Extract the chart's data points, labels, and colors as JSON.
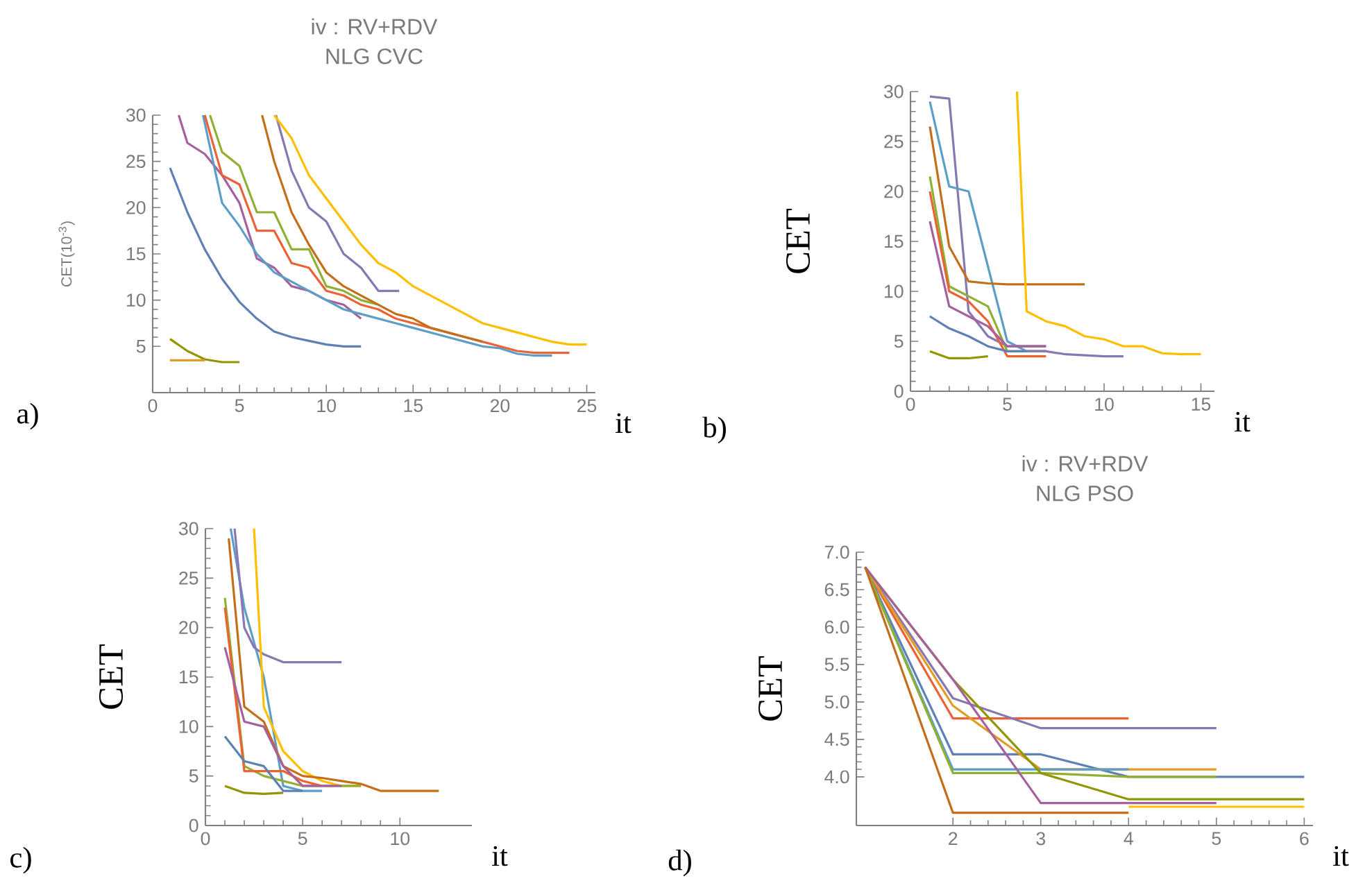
{
  "chart_data": [
    {
      "type": "line",
      "title": "iv : RV+RDV",
      "subtitle": "NLG CVC",
      "xlabel": "it",
      "ylabel": "CET(10$^{-3}$)",
      "annotations": [
        "a)"
      ],
      "xlim": [
        0,
        25.5
      ],
      "ylim": [
        0,
        30
      ],
      "xticks": [
        0,
        5,
        10,
        15,
        20,
        25
      ],
      "yticks": [
        5,
        10,
        15,
        20,
        25,
        30
      ],
      "series": [
        {
          "color": "#5e81b5",
          "x": [
            1,
            2,
            3,
            4,
            5,
            6,
            7,
            8,
            9,
            10,
            11,
            12
          ],
          "values": [
            24.3,
            19.5,
            15.5,
            12.3,
            9.8,
            8,
            6.6,
            6,
            5.6,
            5.2,
            5,
            5
          ]
        },
        {
          "color": "#929600",
          "x": [
            1,
            2,
            3,
            4,
            5
          ],
          "values": [
            5.8,
            4.5,
            3.6,
            3.3,
            3.3
          ]
        },
        {
          "color": "#e19c24",
          "x": [
            1,
            2,
            3
          ],
          "values": [
            3.5,
            3.5,
            3.5
          ]
        },
        {
          "color": "#a5609d",
          "x": [
            1.5,
            2,
            3,
            4,
            5,
            6,
            7,
            8,
            9,
            10,
            11,
            12
          ],
          "values": [
            30,
            27,
            25.8,
            23.5,
            20.5,
            14.5,
            13.5,
            11.5,
            11,
            10,
            9.5,
            8
          ]
        },
        {
          "color": "#5d9ec7",
          "x": [
            2.9,
            4,
            5,
            6,
            7,
            8,
            9,
            10,
            11,
            12,
            13,
            14,
            15,
            16,
            17,
            18,
            19,
            20,
            21,
            22,
            23
          ],
          "values": [
            30,
            20.5,
            18,
            15,
            13,
            12,
            11,
            10,
            9,
            8.5,
            8,
            7.5,
            7,
            6.5,
            6,
            5.5,
            5,
            4.8,
            4.2,
            4,
            4
          ]
        },
        {
          "color": "#8fb032",
          "x": [
            3.3,
            4,
            5,
            6,
            7,
            8,
            9,
            10,
            11,
            12,
            13
          ],
          "values": [
            30,
            26,
            24.5,
            19.5,
            19.5,
            15.5,
            15.5,
            11.5,
            11,
            10,
            9.5
          ]
        },
        {
          "color": "#eb6235",
          "x": [
            3,
            4,
            5,
            6,
            7,
            8,
            9,
            10,
            11,
            12,
            13,
            14,
            15,
            16,
            17,
            18,
            19,
            20,
            21,
            22,
            23,
            24
          ],
          "values": [
            30,
            23.5,
            22.5,
            17.5,
            17.5,
            14,
            13.5,
            11,
            10.5,
            9.5,
            9,
            8,
            7.5,
            7,
            6.5,
            6,
            5.5,
            5,
            4.5,
            4.3,
            4.3,
            4.3
          ]
        },
        {
          "color": "#c56e1a",
          "x": [
            6.3,
            7,
            8,
            9,
            10,
            11,
            12,
            13,
            14,
            15,
            16,
            17,
            18,
            19
          ],
          "values": [
            30,
            25,
            19.5,
            16,
            13,
            11.5,
            10.5,
            9.5,
            8.5,
            8,
            7,
            6.5,
            6,
            5.5
          ]
        },
        {
          "color": "#8778b3",
          "x": [
            7.1,
            8,
            9,
            10,
            11,
            12,
            13,
            14.2
          ],
          "values": [
            30,
            24,
            20,
            18.5,
            15,
            13.5,
            11,
            11
          ]
        },
        {
          "color": "#ffbf00",
          "x": [
            7,
            8,
            9,
            10,
            11,
            12,
            13,
            14,
            15,
            16,
            17,
            18,
            19,
            20,
            21,
            22,
            23,
            24,
            25
          ],
          "values": [
            30,
            27.5,
            23.5,
            21,
            18.5,
            16,
            14,
            13,
            11.5,
            10.5,
            9.5,
            8.5,
            7.5,
            7,
            6.5,
            6,
            5.5,
            5.2,
            5.2
          ]
        }
      ]
    },
    {
      "type": "line",
      "xlabel": "it",
      "ylabel": "CET",
      "annotations": [
        "b)"
      ],
      "xlim": [
        0,
        15.7
      ],
      "ylim": [
        0,
        30
      ],
      "xticks": [
        0,
        5,
        10,
        15
      ],
      "yticks": [
        0,
        5,
        10,
        15,
        20,
        25,
        30
      ],
      "series": [
        {
          "color": "#8778b3",
          "x": [
            1,
            2,
            3,
            4,
            5,
            6,
            7
          ],
          "values": [
            29.5,
            29.3,
            8,
            5.5,
            4.5,
            4.5,
            4.5
          ]
        },
        {
          "color": "#5d9ec7",
          "x": [
            1,
            2,
            3,
            5,
            6,
            7
          ],
          "values": [
            29,
            20.5,
            20,
            5,
            4,
            4
          ]
        },
        {
          "color": "#c56e1a",
          "x": [
            1,
            2,
            3,
            4,
            5,
            6,
            7,
            8,
            9
          ],
          "values": [
            26.5,
            14.5,
            11,
            10.8,
            10.7,
            10.7,
            10.7,
            10.7,
            10.7
          ]
        },
        {
          "color": "#8fb032",
          "x": [
            1,
            2,
            3,
            4,
            5,
            6,
            7
          ],
          "values": [
            21.5,
            10.5,
            9.5,
            8.5,
            4,
            4,
            4
          ]
        },
        {
          "color": "#eb6235",
          "x": [
            1,
            2,
            3,
            4,
            5,
            6,
            7
          ],
          "values": [
            20,
            10,
            9,
            7,
            3.5,
            3.5,
            3.5
          ]
        },
        {
          "color": "#a5609d",
          "x": [
            1,
            2,
            3,
            4,
            5,
            6,
            7
          ],
          "values": [
            17,
            8.5,
            7.5,
            6.5,
            4.5,
            4.5,
            4.5
          ]
        },
        {
          "color": "#5e81b5",
          "x": [
            1,
            2,
            3,
            4,
            5,
            6,
            7
          ],
          "values": [
            7.5,
            6.3,
            5.5,
            4.5,
            4,
            4,
            4
          ]
        },
        {
          "color": "#929600",
          "x": [
            1,
            2,
            3,
            4
          ],
          "values": [
            4,
            3.3,
            3.3,
            3.5
          ]
        },
        {
          "color": "#ffbf00",
          "x": [
            5.5,
            6,
            7,
            8,
            9,
            10,
            11,
            12,
            13,
            14,
            15
          ],
          "values": [
            30,
            8,
            7,
            6.5,
            5.5,
            5.2,
            4.5,
            4.5,
            3.8,
            3.7,
            3.7
          ]
        },
        {
          "color": "#8778b3",
          "x": [
            6,
            7,
            8,
            9,
            10,
            11
          ],
          "values": [
            4,
            4,
            3.7,
            3.6,
            3.5,
            3.5
          ]
        }
      ]
    },
    {
      "type": "line",
      "xlabel": "it",
      "ylabel": "CET",
      "annotations": [
        "c)"
      ],
      "xlim": [
        0,
        13.7
      ],
      "ylim": [
        0,
        30
      ],
      "xticks": [
        0,
        5,
        10
      ],
      "yticks": [
        0,
        5,
        10,
        15,
        20,
        25,
        30
      ],
      "series": [
        {
          "color": "#5d9ec7",
          "x": [
            1.3,
            2,
            3,
            4,
            5,
            6
          ],
          "values": [
            30,
            22,
            15,
            4,
            3.5,
            3.5
          ]
        },
        {
          "color": "#8778b3",
          "x": [
            1.5,
            2,
            2.5,
            3,
            4,
            5,
            7
          ],
          "values": [
            30,
            20,
            18,
            17.3,
            16.5,
            16.5,
            16.5
          ]
        },
        {
          "color": "#ffbf00",
          "x": [
            2.5,
            3,
            4,
            5,
            6,
            7,
            8
          ],
          "values": [
            30,
            12,
            7.5,
            5.5,
            4.5,
            4,
            4
          ]
        },
        {
          "color": "#8fb032",
          "x": [
            1,
            2,
            3,
            4,
            5,
            8
          ],
          "values": [
            23,
            6,
            5,
            4.5,
            4,
            4
          ]
        },
        {
          "color": "#eb6235",
          "x": [
            1,
            2,
            3,
            4,
            5,
            6
          ],
          "values": [
            22,
            5.5,
            5.5,
            5.5,
            4.5,
            4
          ]
        },
        {
          "color": "#c56e1a",
          "x": [
            1.2,
            2,
            3,
            4,
            5,
            6,
            7,
            8,
            9,
            10,
            11,
            12
          ],
          "values": [
            29,
            12,
            10.5,
            6,
            5,
            4.8,
            4.5,
            4.2,
            3.5,
            3.5,
            3.5,
            3.5
          ]
        },
        {
          "color": "#a5609d",
          "x": [
            1,
            2,
            3,
            4,
            5,
            6,
            7
          ],
          "values": [
            18,
            10.5,
            10,
            6,
            4,
            4,
            4
          ]
        },
        {
          "color": "#5e81b5",
          "x": [
            1,
            2,
            3,
            4,
            5
          ],
          "values": [
            9,
            6.5,
            6,
            3.5,
            3.5
          ]
        },
        {
          "color": "#929600",
          "x": [
            1,
            2,
            3,
            4
          ],
          "values": [
            4,
            3.3,
            3.2,
            3.3
          ]
        }
      ]
    },
    {
      "type": "line",
      "title": "iv : RV+RDV",
      "subtitle": "NLG PSO",
      "xlabel": "it",
      "ylabel": "CET",
      "annotations": [
        "d)"
      ],
      "xlim": [
        0.9,
        6.1
      ],
      "ylim": [
        3.35,
        7.0
      ],
      "xticks": [
        2,
        3,
        4,
        5,
        6
      ],
      "yticks": [
        {
          "value": 4,
          "label": "4.0"
        },
        {
          "value": 4.5,
          "label": "4.5"
        },
        {
          "value": 5,
          "label": "5.0"
        },
        {
          "value": 5.5,
          "label": "5.5"
        },
        {
          "value": 6,
          "label": "6.0"
        },
        {
          "value": 6.5,
          "label": "6.5"
        },
        {
          "value": 7,
          "label": "7.0"
        }
      ],
      "series": [
        {
          "color": "#eb6235",
          "x": [
            1,
            2,
            4
          ],
          "values": [
            6.8,
            4.78,
            4.78
          ]
        },
        {
          "color": "#8778b3",
          "x": [
            1,
            2,
            3,
            5
          ],
          "values": [
            6.8,
            5.05,
            4.65,
            4.65
          ]
        },
        {
          "color": "#5e81b5",
          "x": [
            1,
            2,
            3,
            4,
            6
          ],
          "values": [
            6.8,
            4.3,
            4.3,
            4.0,
            4.0
          ]
        },
        {
          "color": "#e19c24",
          "x": [
            1,
            2,
            3,
            5
          ],
          "values": [
            6.8,
            4.95,
            4.1,
            4.1
          ]
        },
        {
          "color": "#5d9ec7",
          "x": [
            1,
            2,
            4
          ],
          "values": [
            6.8,
            4.1,
            4.1
          ]
        },
        {
          "color": "#8fb032",
          "x": [
            1,
            2,
            3,
            4,
            5
          ],
          "values": [
            6.8,
            4.05,
            4.05,
            4.0,
            4.0
          ]
        },
        {
          "color": "#929600",
          "x": [
            1,
            2,
            3,
            4,
            6
          ],
          "values": [
            6.8,
            5.3,
            4.05,
            3.7,
            3.7
          ]
        },
        {
          "color": "#a5609d",
          "x": [
            1,
            2,
            3,
            5
          ],
          "values": [
            6.8,
            5.3,
            3.65,
            3.65
          ]
        },
        {
          "color": "#ffbf00",
          "x": [
            4,
            6
          ],
          "values": [
            3.6,
            3.6
          ]
        },
        {
          "color": "#c56e1a",
          "x": [
            1,
            2,
            4
          ],
          "values": [
            6.8,
            3.52,
            3.52
          ]
        }
      ]
    }
  ]
}
